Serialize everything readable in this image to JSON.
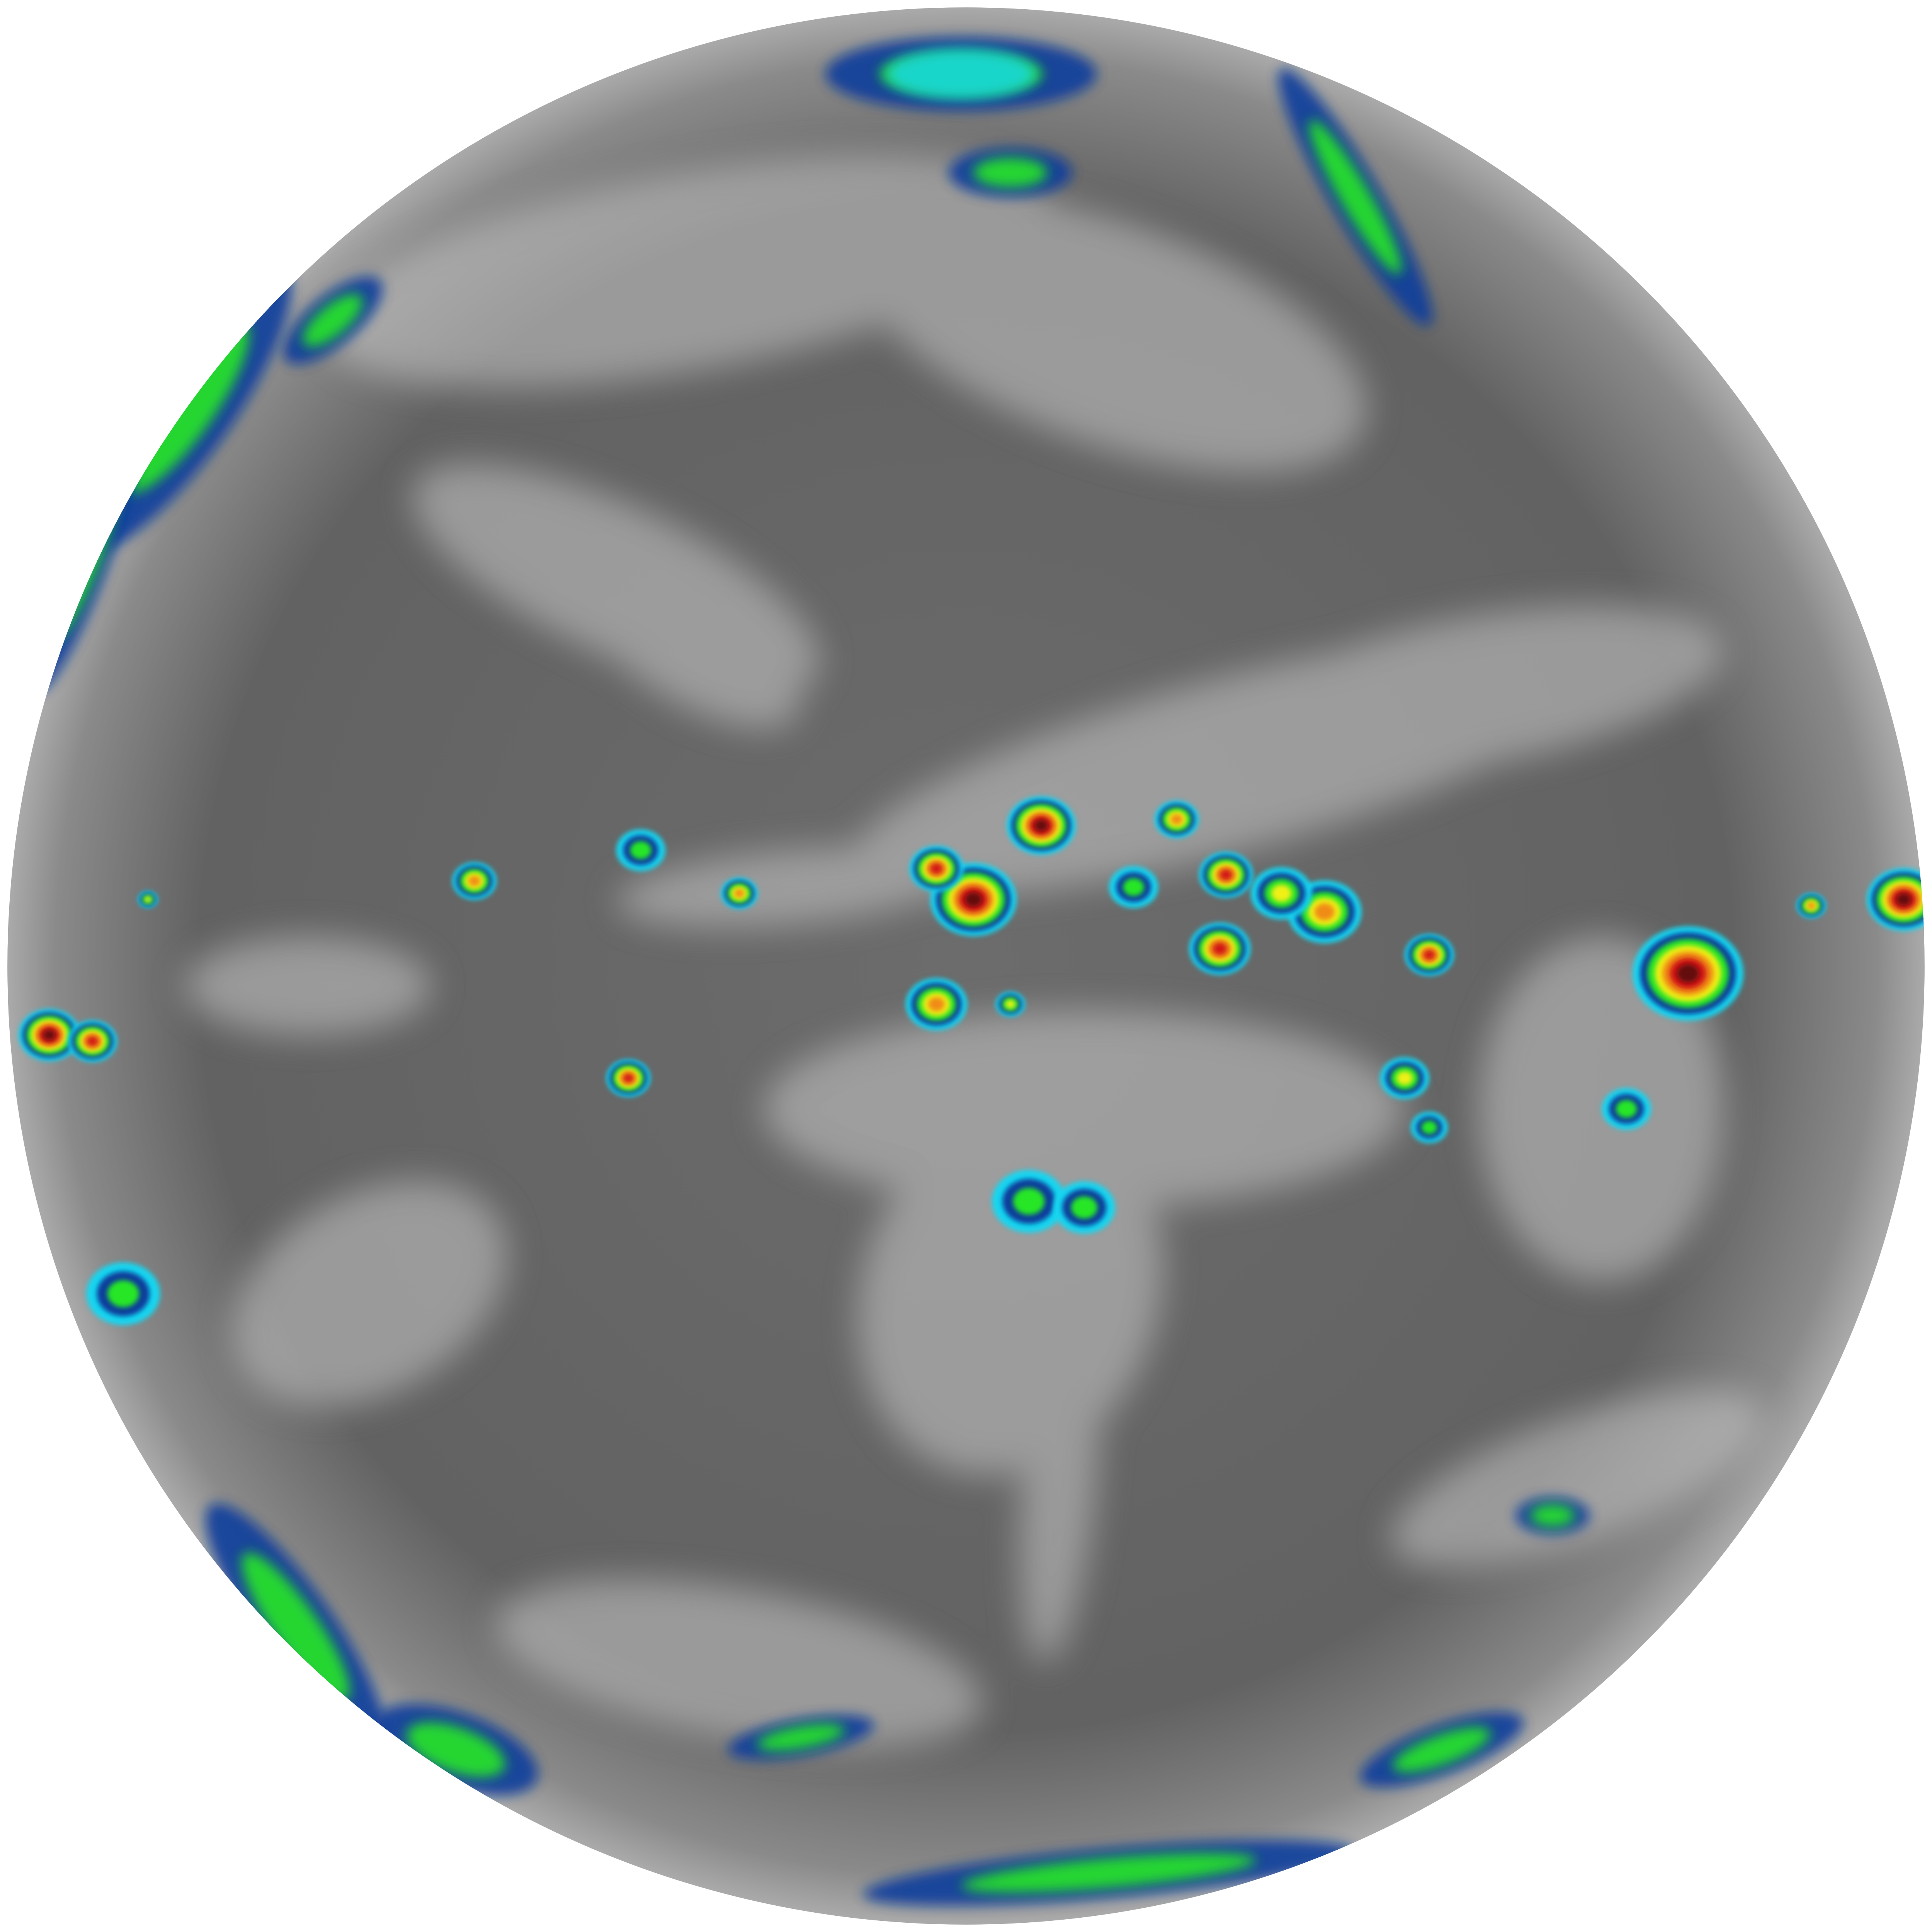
{
  "image": {
    "subject": "full-disk-infrared-earth",
    "colors": {
      "background": "#ffffff",
      "ocean_gray_dark": "#5a5a5a",
      "ocean_gray": "#6e6e6e",
      "cloud_light": "#c8c8c8",
      "cold_cyan": "#19d6f0",
      "cold_blue": "#0a3c9c",
      "cold_green": "#28e628",
      "cold_yellow": "#f0f014",
      "cold_orange": "#f08c14",
      "cold_red": "#d21414",
      "cold_darkred": "#640a0a"
    }
  }
}
